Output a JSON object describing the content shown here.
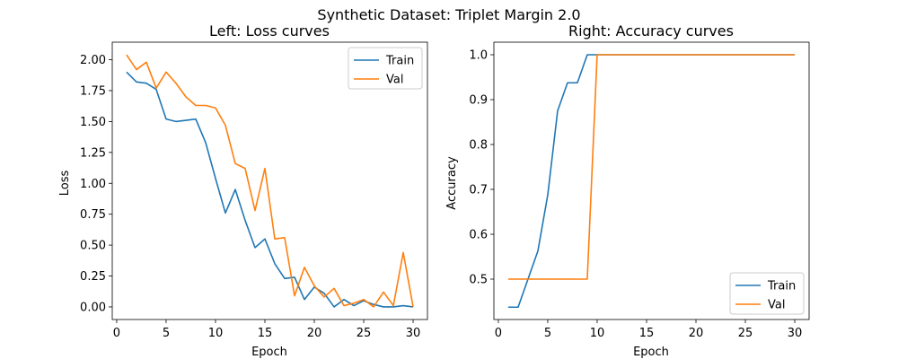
{
  "figure": {
    "suptitle": "Synthetic Dataset: Triplet Margin 2.0"
  },
  "colors": {
    "train": "#1f77b4",
    "val": "#ff7f0e"
  },
  "chart_data": [
    {
      "type": "line",
      "title": "Left: Loss curves",
      "xlabel": "Epoch",
      "ylabel": "Loss",
      "xlim": [
        -0.45,
        31.45
      ],
      "ylim": [
        -0.102,
        2.142
      ],
      "xticks": [
        0,
        5,
        10,
        15,
        20,
        25,
        30
      ],
      "yticks": [
        0.0,
        0.25,
        0.5,
        0.75,
        1.0,
        1.25,
        1.5,
        1.75,
        2.0
      ],
      "ytick_labels": [
        "0.00",
        "0.25",
        "0.50",
        "0.75",
        "1.00",
        "1.25",
        "1.50",
        "1.75",
        "2.00"
      ],
      "legend": "upper right",
      "x": [
        1,
        2,
        3,
        4,
        5,
        6,
        7,
        8,
        9,
        10,
        11,
        12,
        13,
        14,
        15,
        16,
        17,
        18,
        19,
        20,
        21,
        22,
        23,
        24,
        25,
        26,
        27,
        28,
        29,
        30
      ],
      "series": [
        {
          "name": "Train",
          "color": "#1f77b4",
          "values": [
            1.9,
            1.82,
            1.81,
            1.76,
            1.52,
            1.5,
            1.51,
            1.52,
            1.33,
            1.04,
            0.76,
            0.95,
            0.7,
            0.48,
            0.55,
            0.35,
            0.23,
            0.24,
            0.06,
            0.16,
            0.11,
            0.0,
            0.06,
            0.01,
            0.05,
            0.02,
            0.0,
            0.0,
            0.01,
            0.0
          ]
        },
        {
          "name": "Val",
          "color": "#ff7f0e",
          "values": [
            2.04,
            1.92,
            1.98,
            1.77,
            1.9,
            1.81,
            1.7,
            1.63,
            1.63,
            1.61,
            1.47,
            1.16,
            1.12,
            0.78,
            1.12,
            0.55,
            0.56,
            0.09,
            0.32,
            0.17,
            0.08,
            0.15,
            0.01,
            0.03,
            0.06,
            0.0,
            0.12,
            0.01,
            0.44,
            0.0
          ]
        }
      ]
    },
    {
      "type": "line",
      "title": "Right: Accuracy curves",
      "xlabel": "Epoch",
      "ylabel": "Accuracy",
      "xlim": [
        -0.45,
        31.45
      ],
      "ylim": [
        0.41,
        1.028
      ],
      "xticks": [
        0,
        5,
        10,
        15,
        20,
        25,
        30
      ],
      "yticks": [
        0.5,
        0.6,
        0.7,
        0.8,
        0.9,
        1.0
      ],
      "ytick_labels": [
        "0.5",
        "0.6",
        "0.7",
        "0.8",
        "0.9",
        "1.0"
      ],
      "legend": "lower right",
      "x": [
        1,
        2,
        3,
        4,
        5,
        6,
        7,
        8,
        9,
        10,
        11,
        12,
        13,
        14,
        15,
        16,
        17,
        18,
        19,
        20,
        21,
        22,
        23,
        24,
        25,
        26,
        27,
        28,
        29,
        30
      ],
      "series": [
        {
          "name": "Train",
          "color": "#1f77b4",
          "values": [
            0.4375,
            0.4375,
            0.5,
            0.5625,
            0.6875,
            0.875,
            0.9375,
            0.9375,
            1.0,
            1.0,
            1.0,
            1.0,
            1.0,
            1.0,
            1.0,
            1.0,
            1.0,
            1.0,
            1.0,
            1.0,
            1.0,
            1.0,
            1.0,
            1.0,
            1.0,
            1.0,
            1.0,
            1.0,
            1.0,
            1.0
          ]
        },
        {
          "name": "Val",
          "color": "#ff7f0e",
          "values": [
            0.5,
            0.5,
            0.5,
            0.5,
            0.5,
            0.5,
            0.5,
            0.5,
            0.5,
            1.0,
            1.0,
            1.0,
            1.0,
            1.0,
            1.0,
            1.0,
            1.0,
            1.0,
            1.0,
            1.0,
            1.0,
            1.0,
            1.0,
            1.0,
            1.0,
            1.0,
            1.0,
            1.0,
            1.0,
            1.0
          ]
        }
      ]
    }
  ]
}
